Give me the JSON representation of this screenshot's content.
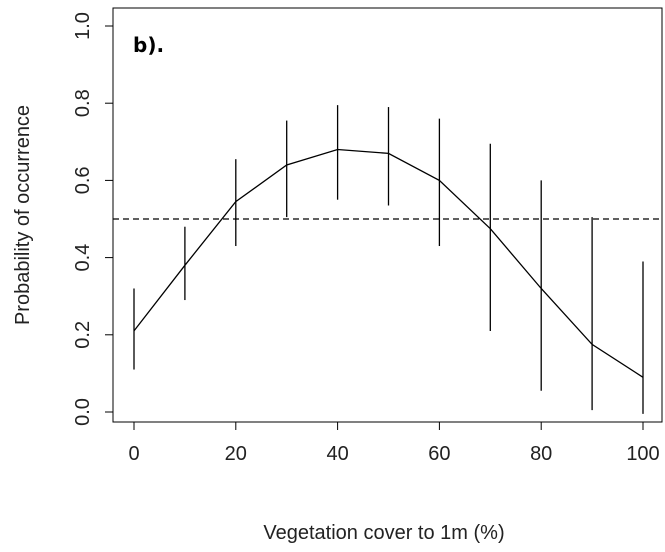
{
  "chart_data": {
    "type": "line",
    "panel_label": "b).",
    "xlabel": "Vegetation cover to 1m (%)",
    "ylabel": "Probability of occurrence",
    "xlim": [
      0,
      100
    ],
    "ylim": [
      0.0,
      1.0
    ],
    "x_ticks": [
      0,
      20,
      40,
      60,
      80,
      100
    ],
    "x_tick_labels": [
      "0",
      "20",
      "40",
      "60",
      "80",
      "100"
    ],
    "y_ticks": [
      0.0,
      0.2,
      0.4,
      0.6,
      0.8,
      1.0
    ],
    "y_tick_labels": [
      "0.0",
      "0.2",
      "0.4",
      "0.6",
      "0.8",
      "1.0"
    ],
    "grid": false,
    "reference_line": {
      "y": 0.5,
      "style": "dashed"
    },
    "series": [
      {
        "x": [
          0,
          10,
          20,
          30,
          40,
          50,
          60,
          70,
          80,
          90,
          100
        ],
        "values": [
          0.21,
          0.38,
          0.545,
          0.64,
          0.68,
          0.67,
          0.6,
          0.475,
          0.32,
          0.175,
          0.09
        ],
        "error_lower": [
          0.11,
          0.29,
          0.43,
          0.505,
          0.55,
          0.535,
          0.43,
          0.21,
          0.055,
          0.005,
          -0.005
        ],
        "error_upper": [
          0.32,
          0.48,
          0.655,
          0.755,
          0.795,
          0.79,
          0.76,
          0.695,
          0.6,
          0.505,
          0.39
        ]
      }
    ],
    "colors": {
      "line": "#000000",
      "axis": "#000000",
      "text": "#222222"
    }
  }
}
